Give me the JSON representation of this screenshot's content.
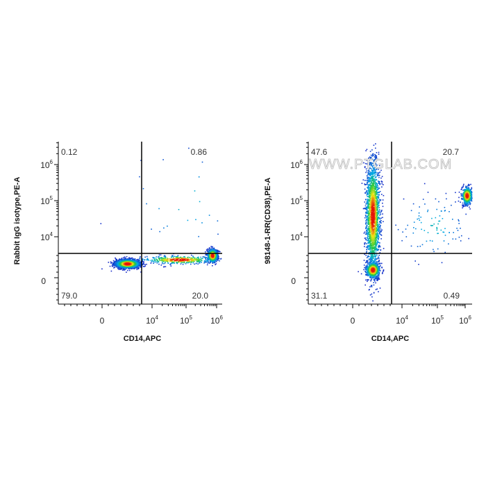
{
  "chart_data": [
    {
      "type": "scatter",
      "subtype": "flow-cytometry-density",
      "xlabel": "CD14,APC",
      "ylabel": "Rabbit IgG isotype,PE-A",
      "x_ticks": [
        {
          "base": "0",
          "exp": ""
        },
        {
          "base": "10",
          "exp": "4"
        },
        {
          "base": "10",
          "exp": "5"
        },
        {
          "base": "10",
          "exp": "6"
        }
      ],
      "y_ticks": [
        {
          "base": "0",
          "exp": ""
        },
        {
          "base": "10",
          "exp": "4"
        },
        {
          "base": "10",
          "exp": "5"
        },
        {
          "base": "10",
          "exp": "6"
        }
      ],
      "quadrants": {
        "upper_left": "0.12",
        "upper_right": "0.86",
        "lower_left": "79.0",
        "lower_right": "20.0"
      },
      "watermark": "",
      "populations": [
        {
          "name": "CD14- CD38-",
          "x_decade": 0.5,
          "y_decade": 0.35,
          "sx": 0.12,
          "sy": 0.05,
          "weight": 0.62
        },
        {
          "name": "CD14+ CD38-",
          "x_decade": 2.85,
          "y_decade": 0.55,
          "sx": 0.08,
          "sy": 0.08,
          "weight": 0.24
        },
        {
          "name": "transition",
          "x_decade": 1.8,
          "y_decade": 0.45,
          "sx": 0.55,
          "sy": 0.05,
          "weight": 0.13
        },
        {
          "name": "sparse",
          "x_decade": 2.0,
          "y_decade": 2.0,
          "sx": 0.9,
          "sy": 0.8,
          "weight": 0.01
        }
      ]
    },
    {
      "type": "scatter",
      "subtype": "flow-cytometry-density",
      "xlabel": "CD14,APC",
      "ylabel": "98148-1-RR(CD38),PE-A",
      "x_ticks": [
        {
          "base": "0",
          "exp": ""
        },
        {
          "base": "10",
          "exp": "4"
        },
        {
          "base": "10",
          "exp": "5"
        },
        {
          "base": "10",
          "exp": "6"
        }
      ],
      "y_ticks": [
        {
          "base": "0",
          "exp": ""
        },
        {
          "base": "10",
          "exp": "4"
        },
        {
          "base": "10",
          "exp": "5"
        },
        {
          "base": "10",
          "exp": "6"
        }
      ],
      "quadrants": {
        "upper_left": "47.6",
        "upper_right": "20.7",
        "lower_left": "31.1",
        "lower_right": "0.49"
      },
      "watermark": "WWW.PTGLAB.COM",
      "populations": [
        {
          "name": "CD14- CD38 column",
          "x_decade": 0.4,
          "y_decade": 1.6,
          "sx": 0.07,
          "sy": 0.75,
          "weight": 0.62
        },
        {
          "name": "CD14- CD38- base",
          "x_decade": 0.4,
          "y_decade": 0.2,
          "sx": 0.07,
          "sy": 0.1,
          "weight": 0.18
        },
        {
          "name": "CD14+ CD38+",
          "x_decade": 3.05,
          "y_decade": 2.15,
          "sx": 0.09,
          "sy": 0.12,
          "weight": 0.17
        },
        {
          "name": "bridge",
          "x_decade": 1.9,
          "y_decade": 1.3,
          "sx": 0.6,
          "sy": 0.45,
          "weight": 0.03
        }
      ]
    }
  ]
}
